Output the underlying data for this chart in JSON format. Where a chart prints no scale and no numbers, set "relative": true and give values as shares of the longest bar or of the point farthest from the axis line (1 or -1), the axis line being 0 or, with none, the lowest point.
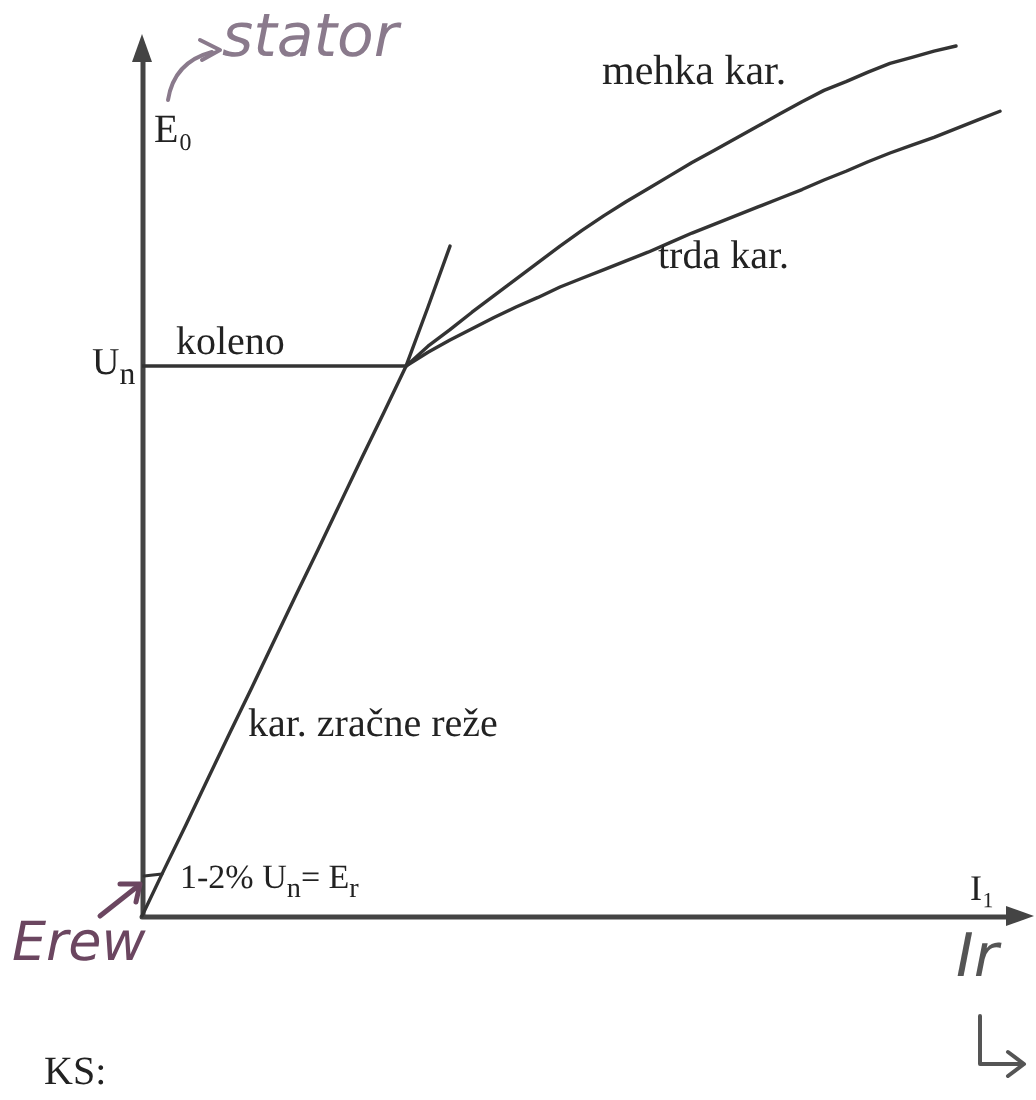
{
  "chart_data": {
    "type": "line",
    "relative": true,
    "xlabel": "I₁",
    "ylabel": "E₀",
    "categories": [
      null,
      null,
      null,
      null,
      null,
      null,
      null,
      null,
      null,
      null,
      null,
      null,
      null,
      null,
      null,
      null,
      null,
      null,
      null,
      null,
      null,
      null,
      null,
      null,
      null,
      null,
      null,
      null,
      null,
      null,
      null,
      null,
      null,
      null,
      null,
      null,
      null,
      null,
      null,
      null,
      null
    ],
    "series": [
      {
        "name": "kar. zračne reže",
        "color": "#333333",
        "values": [
          0,
          0.053,
          0.105,
          0.158,
          0.211,
          0.263,
          0.316,
          0.369,
          0.421,
          0.474,
          0.527,
          0.579,
          0.632,
          0.7,
          0.77,
          null,
          null,
          null,
          null,
          null,
          null,
          null,
          null,
          null,
          null,
          null,
          null,
          null,
          null,
          null,
          null,
          null,
          null,
          null,
          null,
          null,
          null,
          null,
          null,
          null,
          null
        ]
      },
      {
        "name": "mehka kar.",
        "color": "#333333",
        "values": [
          null,
          null,
          null,
          null,
          null,
          null,
          null,
          null,
          null,
          null,
          null,
          null,
          0.632,
          0.655,
          0.674,
          0.694,
          0.713,
          0.732,
          0.751,
          0.77,
          0.788,
          0.805,
          0.821,
          0.836,
          0.851,
          0.866,
          0.88,
          0.894,
          0.908,
          0.922,
          0.936,
          0.949,
          0.959,
          0.97,
          0.98,
          0.987,
          0.994,
          1,
          null,
          null,
          null
        ]
      },
      {
        "name": "trda kar.",
        "color": "#333333",
        "values": [
          null,
          null,
          null,
          null,
          null,
          null,
          null,
          null,
          null,
          null,
          null,
          null,
          0.632,
          0.648,
          0.662,
          0.675,
          0.688,
          0.7,
          0.711,
          0.723,
          0.733,
          0.743,
          0.753,
          0.763,
          0.774,
          0.785,
          0.795,
          0.805,
          0.815,
          0.825,
          0.835,
          0.846,
          0.856,
          0.867,
          0.877,
          0.886,
          0.895,
          0.905,
          0.915,
          0.925,
          null
        ]
      }
    ],
    "ref_lines": [
      {
        "axis": "y",
        "value": 0.632,
        "label": "U$_{n}$",
        "color": "#333333"
      }
    ],
    "annotations": [
      "koleno",
      "1-2% U$_{n}$= E$_{r}$",
      "stator",
      "Erew",
      "Ir",
      "KS:"
    ]
  }
}
